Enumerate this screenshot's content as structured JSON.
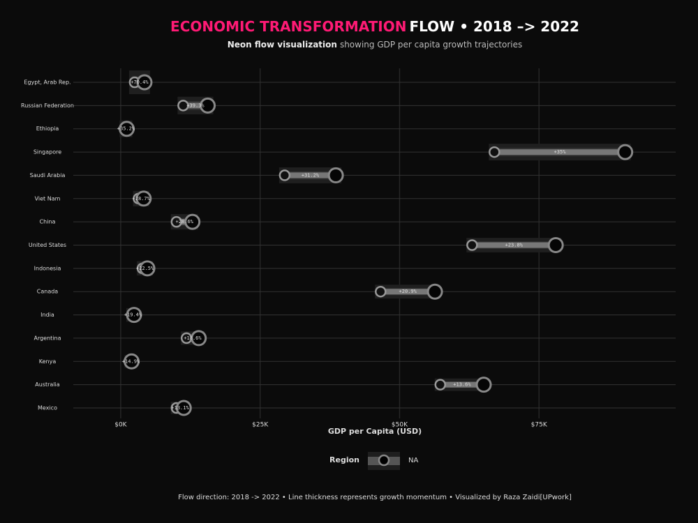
{
  "chart_data": {
    "type": "dumbbell",
    "title_part1": "ECONOMIC TRANSFORMATION",
    "title_part2": "FLOW • 2018 –> 2022",
    "subtitle_bold": "Neon flow visualization",
    "subtitle_rest": "showing GDP per capita growth trajectories",
    "x_label": "GDP per Capita (USD)",
    "categories": [
      "Egypt, Arab Rep.",
      "Russian Federation",
      "Ethiopia",
      "Singapore",
      "Saudi Arabia",
      "Viet Nam",
      "China",
      "United States",
      "Indonesia",
      "Canada",
      "India",
      "Argentina",
      "Kenya",
      "Australia",
      "Mexico"
    ],
    "start_values": [
      2500,
      11200,
      800,
      67000,
      29400,
      3200,
      10000,
      63000,
      3900,
      46600,
      2000,
      11800,
      1700,
      57300,
      10000
    ],
    "end_values": [
      4260,
      15600,
      1080,
      90450,
      38570,
      4120,
      12860,
      78000,
      4780,
      56340,
      2390,
      13990,
      1950,
      65090,
      11310
    ],
    "growth": [
      70.4,
      39.3,
      35.2,
      35,
      31.2,
      28.7,
      28.6,
      23.8,
      22.5,
      20.9,
      19.4,
      18.6,
      14.9,
      13.6,
      13.1
    ],
    "growth_labels": [
      "+70.4%",
      "+39.3%",
      "+35.2%",
      "+35%",
      "+31.2%",
      "+28.7%",
      "+28.6%",
      "+23.8%",
      "+22.5%",
      "+20.9%",
      "+19.4%",
      "+18.6%",
      "+14.9%",
      "+13.6%",
      "+13.1%"
    ],
    "xlim": [
      -8500,
      99500
    ],
    "xticks": [
      {
        "value": 0,
        "label": "$0K"
      },
      {
        "value": 25000,
        "label": "$25K"
      },
      {
        "value": 50000,
        "label": "$50K"
      },
      {
        "value": 75000,
        "label": "$75K"
      }
    ],
    "grid": true,
    "legend_title": "Region",
    "legend_entry": "NA",
    "title_color": "#ff1a75",
    "caption": "Flow direction: 2018 -> 2022 • Line thickness represents growth momentum • Visualized by Raza Zaidi[UPwork]"
  }
}
